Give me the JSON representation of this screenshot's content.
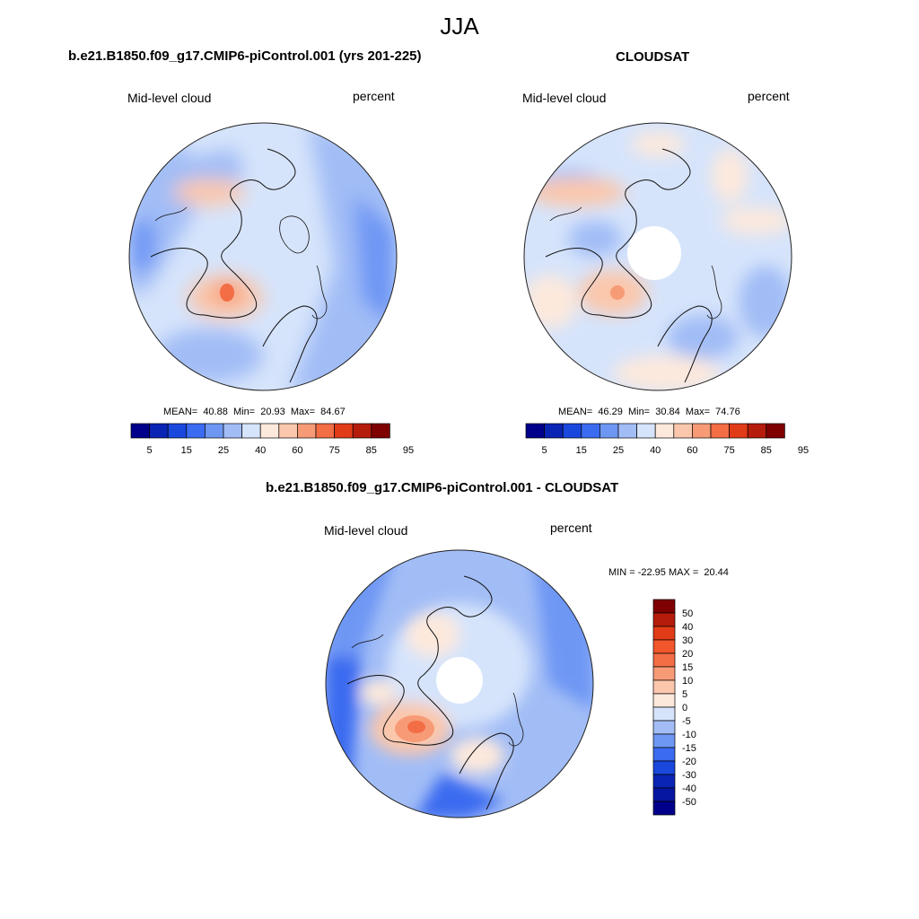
{
  "season": "JJA",
  "panels": [
    {
      "title": "b.e21.B1850.f09_g17.CMIP6-piControl.001 (yrs 201-225)",
      "variable": "Mid-level cloud",
      "units": "percent",
      "stats": "MEAN=  40.88  Min=  20.93  Max=  84.67"
    },
    {
      "title": "CLOUDSAT",
      "variable": "Mid-level cloud",
      "units": "percent",
      "stats": "MEAN=  46.29  Min=  30.84  Max=  74.76"
    },
    {
      "title": "b.e21.B1850.f09_g17.CMIP6-piControl.001 - CLOUDSAT",
      "variable": "Mid-level cloud",
      "units": "percent",
      "stats": "MIN = -22.95 MAX =  20.44"
    }
  ],
  "colorbar_abs": {
    "labels": [
      "5",
      "15",
      "25",
      "40",
      "60",
      "75",
      "85",
      "95"
    ],
    "colors": [
      "#00008b",
      "#0a24b4",
      "#1a47dc",
      "#3a6bf0",
      "#6e97f4",
      "#a2bdf6",
      "#d6e4fb",
      "#fde9dc",
      "#fbc7ac",
      "#f79b77",
      "#f36d45",
      "#e23b17",
      "#b61c0c",
      "#7f0000"
    ]
  },
  "colorbar_diff": {
    "labels": [
      "50",
      "40",
      "30",
      "20",
      "15",
      "10",
      "5",
      "0",
      "-5",
      "-10",
      "-15",
      "-20",
      "-30",
      "-40",
      "-50"
    ],
    "colors": [
      "#7f0000",
      "#b61c0c",
      "#e23b17",
      "#f3562a",
      "#f36d45",
      "#f79b77",
      "#fbc7ac",
      "#fde9dc",
      "#d6e4fb",
      "#a2bdf6",
      "#6e97f4",
      "#3a6bf0",
      "#1a47dc",
      "#0a24b4",
      "#0616a0",
      "#00008b"
    ]
  }
}
